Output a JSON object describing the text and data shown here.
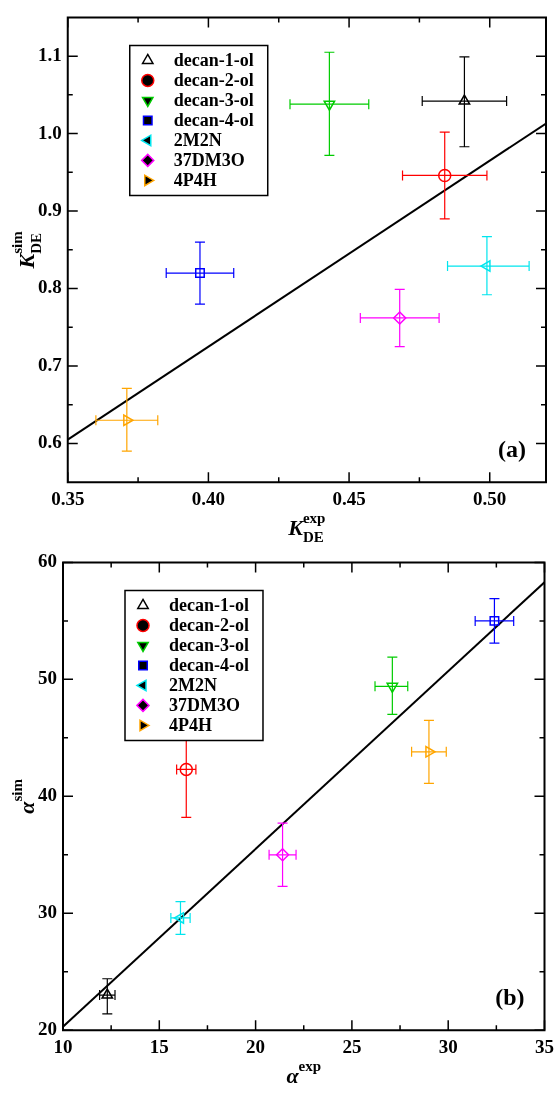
{
  "chart_data": [
    {
      "type": "scatter",
      "xlabel": "K$_{DE}$$^{exp}$",
      "ylabel": "K$_{DE}$$^{sim}$",
      "xlim": [
        0.35,
        0.52
      ],
      "ylim": [
        0.55,
        1.15
      ],
      "xticks": [
        0.35,
        {
          "value": 0.375,
          "label": null
        },
        {
          "value": 0.4,
          "label": "0.40"
        },
        {
          "value": 0.425,
          "label": null
        },
        0.45,
        {
          "value": 0.475,
          "label": null
        },
        {
          "value": 0.5,
          "label": "0.50"
        }
      ],
      "yticks": [
        {
          "value": 0.6,
          "label": "0.6"
        },
        {
          "value": 0.65,
          "label": null
        },
        {
          "value": 0.7,
          "label": "0.7"
        },
        {
          "value": 0.75,
          "label": null
        },
        {
          "value": 0.8,
          "label": "0.8"
        },
        {
          "value": 0.85,
          "label": null
        },
        {
          "value": 0.9,
          "label": "0.9"
        },
        {
          "value": 0.95,
          "label": null
        },
        {
          "value": 1,
          "label": "1.0"
        },
        {
          "value": 1.05,
          "label": null
        },
        {
          "value": 1.1,
          "label": "1.1"
        }
      ],
      "legend": "top left",
      "annotations": [
        "(a)"
      ],
      "series": [
        {
          "name": "decan-1-ol",
          "color": "#000000",
          "marker": "triangle",
          "x": [
            0.491
          ],
          "values": [
            1.042
          ],
          "errors": [
            [
              0.983,
              1.099
            ]
          ],
          "xerrors": [
            [
              0.476,
              0.506
            ]
          ]
        },
        {
          "name": "decan-2-ol",
          "color": "#ff0000",
          "marker": "circle",
          "x": [
            0.484
          ],
          "values": [
            0.946
          ],
          "errors": [
            [
              0.89,
              1.002
            ]
          ],
          "xerrors": [
            [
              0.469,
              0.499
            ]
          ]
        },
        {
          "name": "decan-3-ol",
          "color": "#00cc00",
          "marker": "triangle_down",
          "x": [
            0.443
          ],
          "values": [
            1.038
          ],
          "errors": [
            [
              0.972,
              1.105
            ]
          ],
          "xerrors": [
            [
              0.429,
              0.457
            ]
          ]
        },
        {
          "name": "decan-4-ol",
          "color": "#0000ff",
          "marker": "square",
          "x": [
            0.397
          ],
          "values": [
            0.82
          ],
          "errors": [
            [
              0.78,
              0.86
            ]
          ],
          "xerrors": [
            [
              0.385,
              0.409
            ]
          ]
        },
        {
          "name": "2M2N",
          "color": "#00e5ee",
          "marker": "triangle_left",
          "x": [
            0.499
          ],
          "values": [
            0.829
          ],
          "errors": [
            [
              0.792,
              0.867
            ]
          ],
          "xerrors": [
            [
              0.485,
              0.514
            ]
          ]
        },
        {
          "name": "37DM3O",
          "color": "#ff00ff",
          "marker": "diamond",
          "x": [
            0.468
          ],
          "values": [
            0.762
          ],
          "errors": [
            [
              0.725,
              0.799
            ]
          ],
          "xerrors": [
            [
              0.454,
              0.482
            ]
          ]
        },
        {
          "name": "4P4H",
          "color": "#ffa500",
          "marker": "triangle_right",
          "x": [
            0.371
          ],
          "values": [
            0.63
          ],
          "errors": [
            [
              0.59,
              0.671
            ]
          ],
          "xerrors": [
            [
              0.36,
              0.382
            ]
          ]
        },
        {
          "type": "line",
          "color": "#000000",
          "marker": "none",
          "x": [
            0.35,
            0.52
          ],
          "values": [
            0.605,
            1.013
          ]
        }
      ]
    },
    {
      "type": "scatter",
      "xlabel": "α$^{exp}$",
      "ylabel": "α$^{sim}$",
      "xlim": [
        10,
        35
      ],
      "ylim": [
        20,
        60
      ],
      "xticks": [
        10,
        {
          "value": 12.5,
          "label": null
        },
        15,
        {
          "value": 17.5,
          "label": null
        },
        20,
        {
          "value": 22.5,
          "label": null
        },
        25,
        {
          "value": 27.5,
          "label": null
        },
        30,
        {
          "value": 32.5,
          "label": null
        },
        35
      ],
      "yticks": [
        20,
        {
          "value": 25,
          "label": null
        },
        30,
        {
          "value": 35,
          "label": null
        },
        40,
        {
          "value": 45,
          "label": null
        },
        50,
        {
          "value": 55,
          "label": null
        },
        60
      ],
      "legend": "top left",
      "annotations": [
        "(b)"
      ],
      "series": [
        {
          "name": "decan-1-ol",
          "color": "#000000",
          "marker": "triangle",
          "x": [
            12.3
          ],
          "values": [
            23.0
          ],
          "errors": [
            [
              21.4,
              24.4
            ]
          ],
          "xerrors": [
            [
              11.9,
              12.7
            ]
          ]
        },
        {
          "name": "decan-2-ol",
          "color": "#ff0000",
          "marker": "circle",
          "x": [
            16.4
          ],
          "values": [
            42.3
          ],
          "errors": [
            [
              38.2,
              45.7
            ]
          ],
          "xerrors": [
            [
              15.9,
              16.9
            ]
          ]
        },
        {
          "name": "decan-3-ol",
          "color": "#00cc00",
          "marker": "triangle_down",
          "x": [
            27.1
          ],
          "values": [
            49.4
          ],
          "errors": [
            [
              47.0,
              51.9
            ]
          ],
          "xerrors": [
            [
              26.2,
              27.9
            ]
          ]
        },
        {
          "name": "decan-4-ol",
          "color": "#0000ff",
          "marker": "square",
          "x": [
            32.4
          ],
          "values": [
            55.0
          ],
          "errors": [
            [
              53.1,
              56.9
            ]
          ],
          "xerrors": [
            [
              31.4,
              33.4
            ]
          ]
        },
        {
          "name": "2M2N",
          "color": "#00e5ee",
          "marker": "triangle_left",
          "x": [
            16.1
          ],
          "values": [
            29.6
          ],
          "errors": [
            [
              28.2,
              31.0
            ]
          ],
          "xerrors": [
            [
              15.6,
              16.6
            ]
          ]
        },
        {
          "name": "37DM3O",
          "color": "#ff00ff",
          "marker": "diamond",
          "x": [
            21.4
          ],
          "values": [
            35.0
          ],
          "errors": [
            [
              32.3,
              37.7
            ]
          ],
          "xerrors": [
            [
              20.7,
              22.1
            ]
          ]
        },
        {
          "name": "4P4H",
          "color": "#ffa500",
          "marker": "triangle_right",
          "x": [
            29.0
          ],
          "values": [
            43.8
          ],
          "errors": [
            [
              41.1,
              46.5
            ]
          ],
          "xerrors": [
            [
              28.1,
              29.9
            ]
          ]
        },
        {
          "type": "line",
          "color": "#000000",
          "marker": "none",
          "x": [
            10,
            35
          ],
          "values": [
            20.3,
            58.3
          ]
        }
      ]
    }
  ]
}
